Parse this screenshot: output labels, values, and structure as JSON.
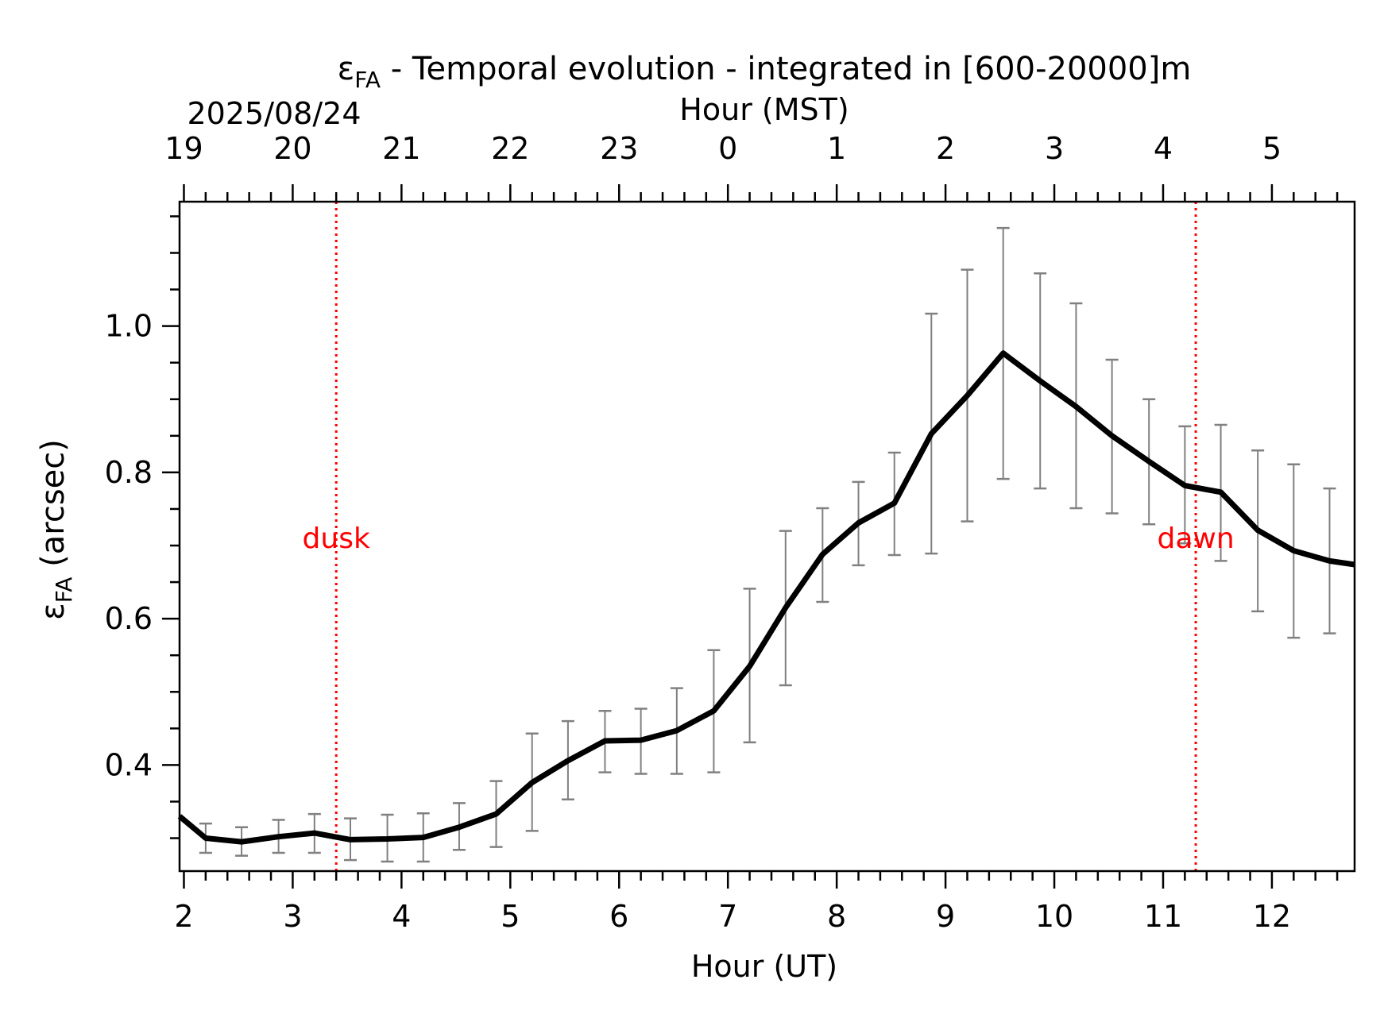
{
  "chart_data": {
    "type": "line",
    "title_symbol": "ε",
    "title_subscript": "FA",
    "title_rest": " - Temporal evolution - integrated in [600-20000]m",
    "top_axis": {
      "date_label": "2025/08/24",
      "label": "Hour (MST)",
      "tick_labels": [
        "19",
        "20",
        "21",
        "22",
        "23",
        "0",
        "1",
        "2",
        "3",
        "4",
        "5"
      ]
    },
    "xlabel": "Hour (UT)",
    "ylabel_symbol": "ε",
    "ylabel_subscript": "FA",
    "ylabel_rest": " (arcsec)",
    "xlim": [
      1.96,
      12.76
    ],
    "ylim": [
      0.255,
      1.17
    ],
    "xticks": [
      2,
      3,
      4,
      5,
      6,
      7,
      8,
      9,
      10,
      11,
      12
    ],
    "yticks": [
      0.4,
      0.6,
      0.8,
      1.0
    ],
    "ytick_labels": [
      "0.4",
      "0.6",
      "0.8",
      "1.0"
    ],
    "grid": false,
    "series": [
      {
        "color": "#000000",
        "x": [
          1.96,
          2.2,
          2.53,
          2.87,
          3.2,
          3.53,
          3.87,
          4.2,
          4.53,
          4.87,
          5.2,
          5.53,
          5.87,
          6.2,
          6.53,
          6.87,
          7.2,
          7.53,
          7.87,
          8.2,
          8.53,
          8.87,
          9.2,
          9.53,
          9.87,
          10.2,
          10.53,
          10.87,
          11.2,
          11.53,
          11.87,
          12.2,
          12.53,
          12.76
        ],
        "y": [
          0.33,
          0.3,
          0.295,
          0.302,
          0.307,
          0.298,
          0.299,
          0.301,
          0.315,
          0.333,
          0.376,
          0.406,
          0.433,
          0.434,
          0.447,
          0.474,
          0.535,
          0.615,
          0.688,
          0.731,
          0.758,
          0.853,
          0.905,
          0.963,
          0.925,
          0.89,
          0.85,
          0.815,
          0.782,
          0.773,
          0.721,
          0.693,
          0.679,
          0.674
        ],
        "err_x": [
          2.2,
          2.53,
          2.87,
          3.2,
          3.53,
          3.87,
          4.2,
          4.53,
          4.87,
          5.2,
          5.53,
          5.87,
          6.2,
          6.53,
          6.87,
          7.2,
          7.53,
          7.87,
          8.2,
          8.53,
          8.87,
          9.2,
          9.53,
          9.87,
          10.2,
          10.53,
          10.87,
          11.2,
          11.53,
          11.87,
          12.2,
          12.53
        ],
        "err_low": [
          0.28,
          0.276,
          0.28,
          0.28,
          0.27,
          0.268,
          0.268,
          0.284,
          0.288,
          0.31,
          0.353,
          0.39,
          0.388,
          0.388,
          0.39,
          0.431,
          0.509,
          0.623,
          0.673,
          0.687,
          0.689,
          0.733,
          0.791,
          0.778,
          0.751,
          0.744,
          0.729,
          0.703,
          0.679,
          0.61,
          0.574,
          0.58
        ],
        "err_high": [
          0.32,
          0.315,
          0.325,
          0.333,
          0.327,
          0.332,
          0.334,
          0.348,
          0.378,
          0.443,
          0.46,
          0.474,
          0.477,
          0.505,
          0.557,
          0.641,
          0.72,
          0.751,
          0.787,
          0.827,
          1.017,
          1.077,
          1.134,
          1.072,
          1.031,
          0.954,
          0.9,
          0.863,
          0.865,
          0.83,
          0.811,
          0.778
        ]
      }
    ],
    "error_bar_color": "#808080",
    "annotations": [
      {
        "text": "dusk",
        "x": 3.4,
        "y": 0.71,
        "color": "#ff0000"
      },
      {
        "text": "dawn",
        "x": 11.3,
        "y": 0.71,
        "color": "#ff0000"
      }
    ]
  }
}
